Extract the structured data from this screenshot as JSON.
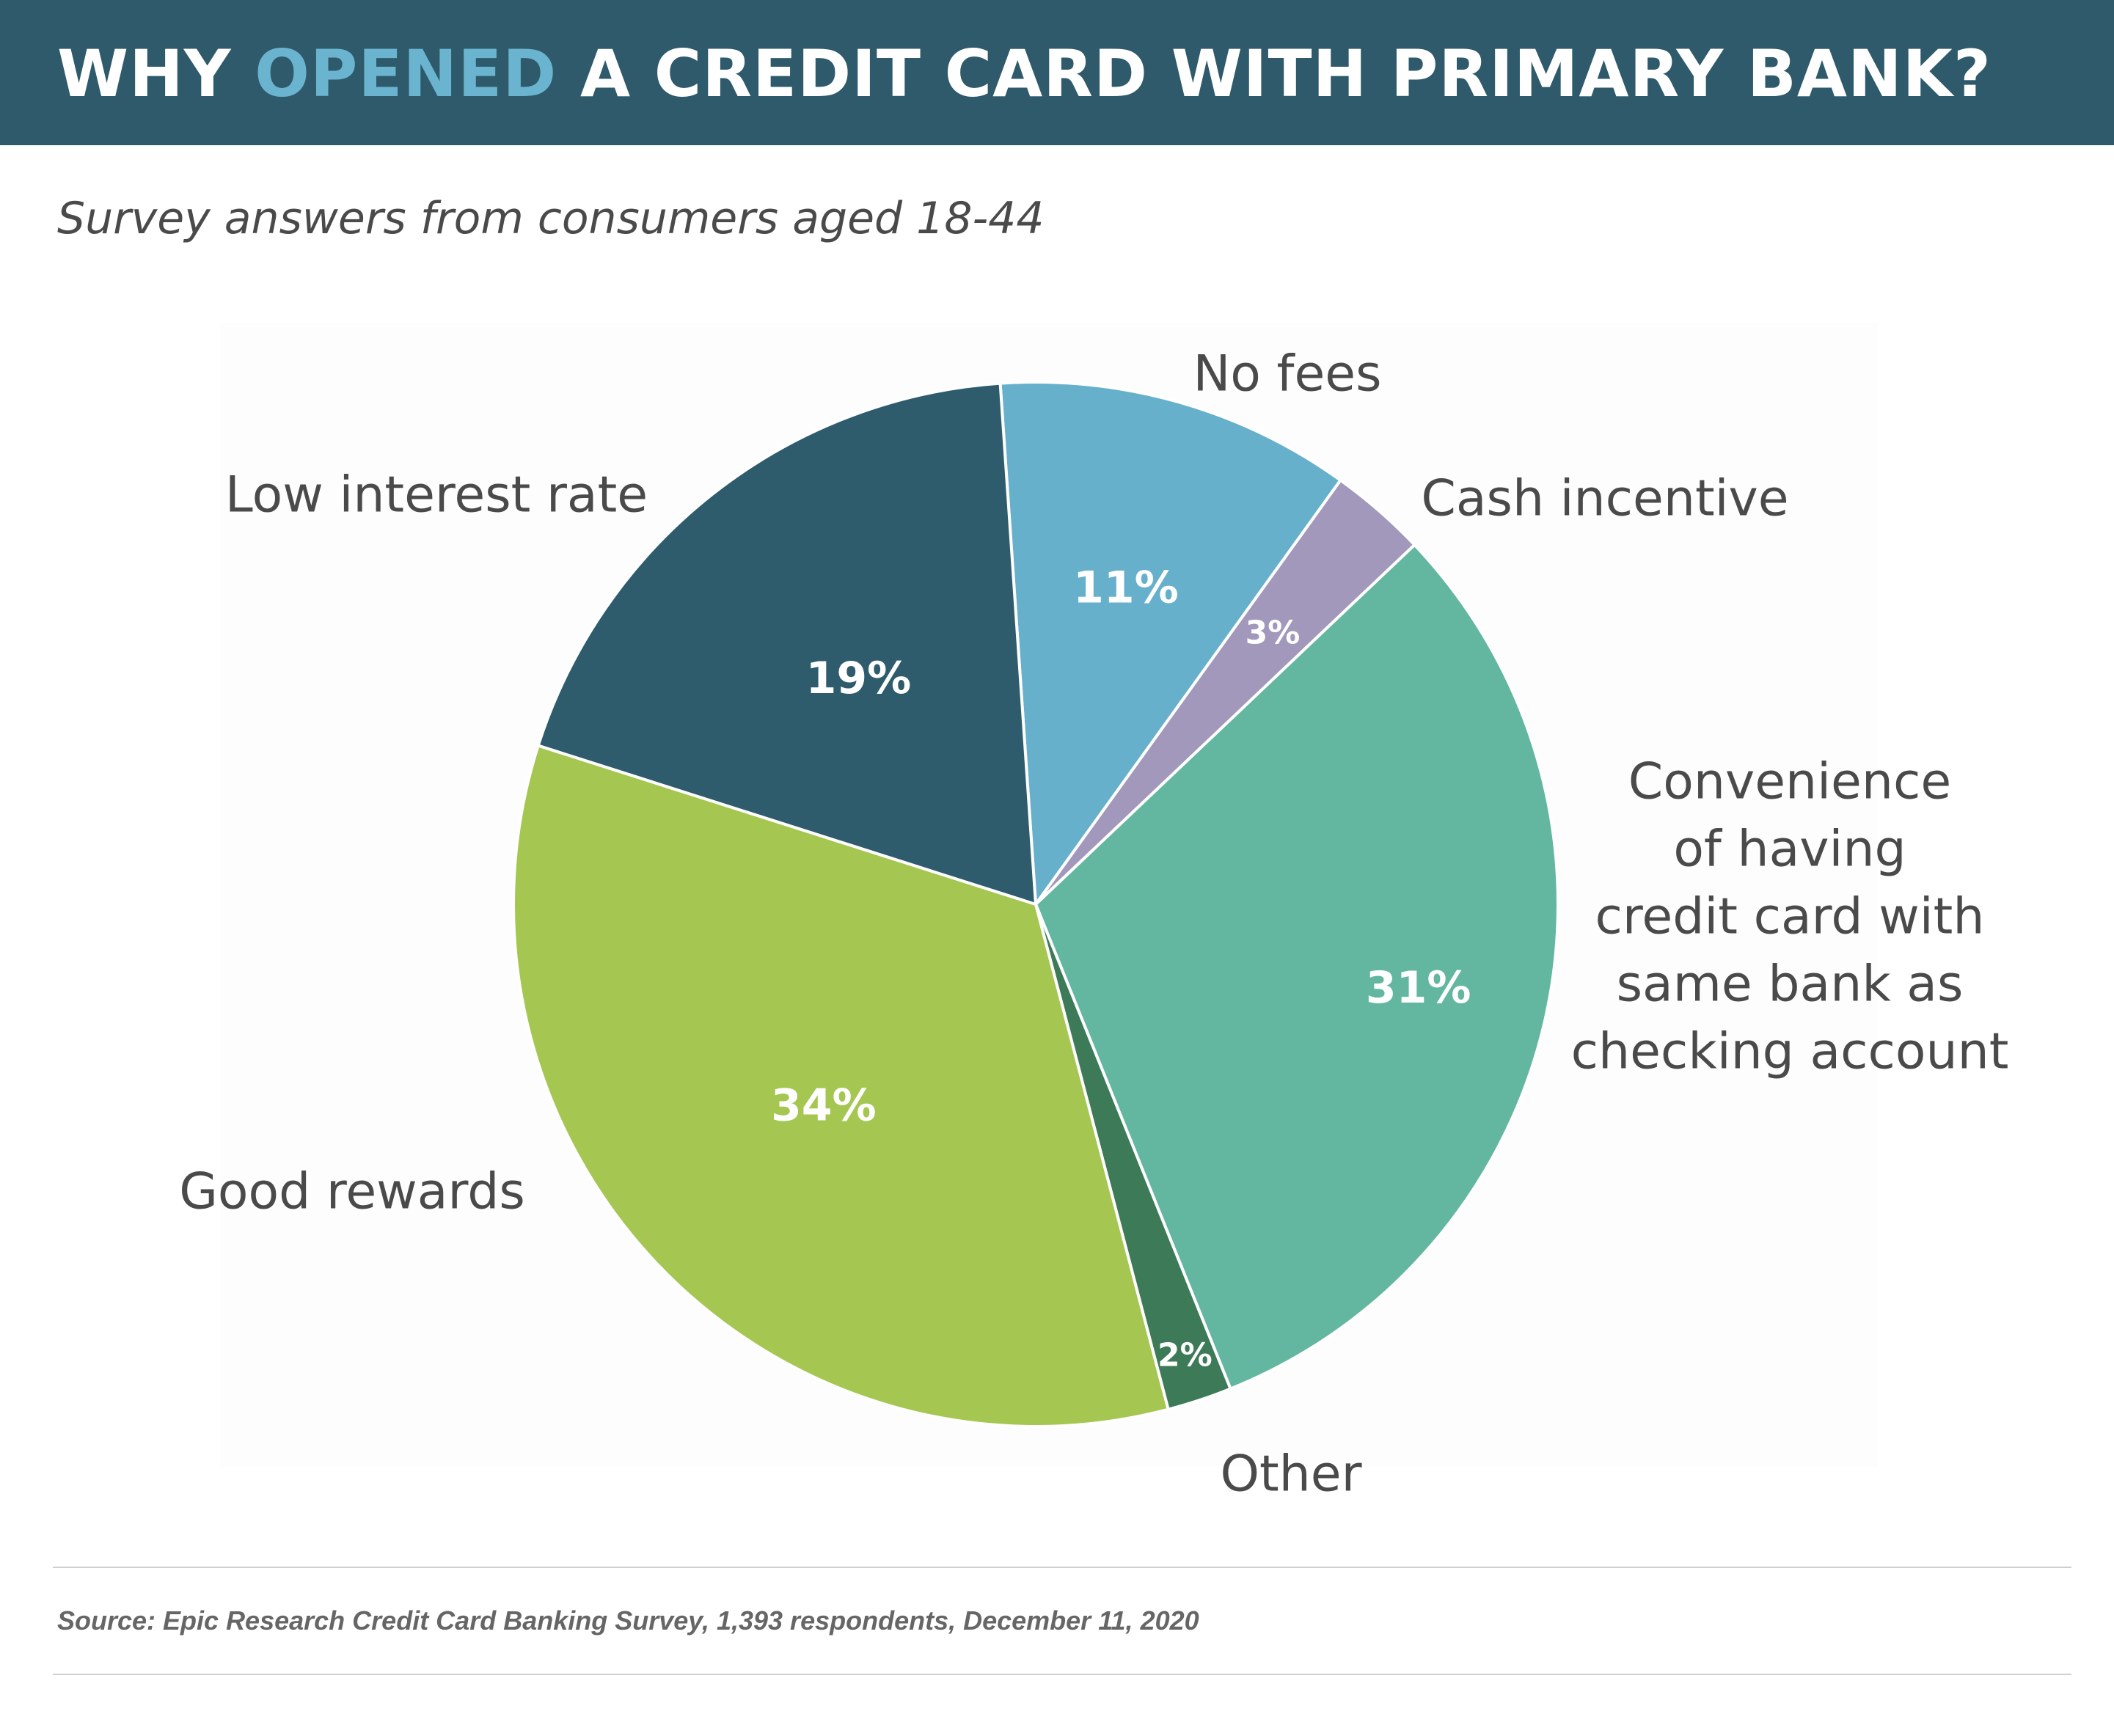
{
  "title": {
    "prefix": "WHY ",
    "highlight": "OPENED",
    "suffix": " A CREDIT CARD WITH PRIMARY BANK?",
    "highlight_color": "#6ab4cf",
    "bar_color": "#2e5a6b"
  },
  "subtitle": "Survey answers from consumers aged 18-44",
  "source": "Source: Epic Research Credit Card Banking Survey, 1,393 respondents, December 11, 2020",
  "chart_data": {
    "type": "pie",
    "slices": [
      {
        "category": "No fees",
        "label_lines": [
          "No fees"
        ],
        "value": 11,
        "value_label": "11%",
        "color": "#67b0cb"
      },
      {
        "category": "Cash incentive",
        "label_lines": [
          "Cash incentive"
        ],
        "value": 3,
        "value_label": "3%",
        "color": "#a198bb"
      },
      {
        "category": "Convenience of having credit card with same bank as checking account",
        "label_lines": [
          "Convenience",
          "of having",
          "credit card with",
          "same bank as",
          "checking account"
        ],
        "value": 31,
        "value_label": "31%",
        "color": "#63b7a1"
      },
      {
        "category": "Other",
        "label_lines": [
          "Other"
        ],
        "value": 2,
        "value_label": "2%",
        "color": "#3d7a57"
      },
      {
        "category": "Good rewards",
        "label_lines": [
          "Good rewards"
        ],
        "value": 34,
        "value_label": "34%",
        "color": "#a5c752"
      },
      {
        "category": "Low interest rate",
        "label_lines": [
          "Low interest rate"
        ],
        "value": 19,
        "value_label": "19%",
        "color": "#2e5c6c"
      }
    ]
  }
}
